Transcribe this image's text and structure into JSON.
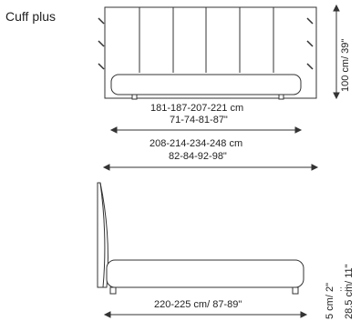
{
  "product": {
    "name": "Cuff plus"
  },
  "front_view": {
    "width_dims_cm": "181-187-207-221 cm",
    "width_dims_in": "71-74-81-87\"",
    "overall_dims_cm": "208-214-234-248 cm",
    "overall_dims_in": "82-84-92-98\"",
    "height_dim": "100 cm/ 39\""
  },
  "side_view": {
    "length_dim": "220-225 cm/ 87-89\"",
    "leg_height": "5 cm/ 2\"",
    "bed_height": "28.5 cm/ 11\""
  }
}
